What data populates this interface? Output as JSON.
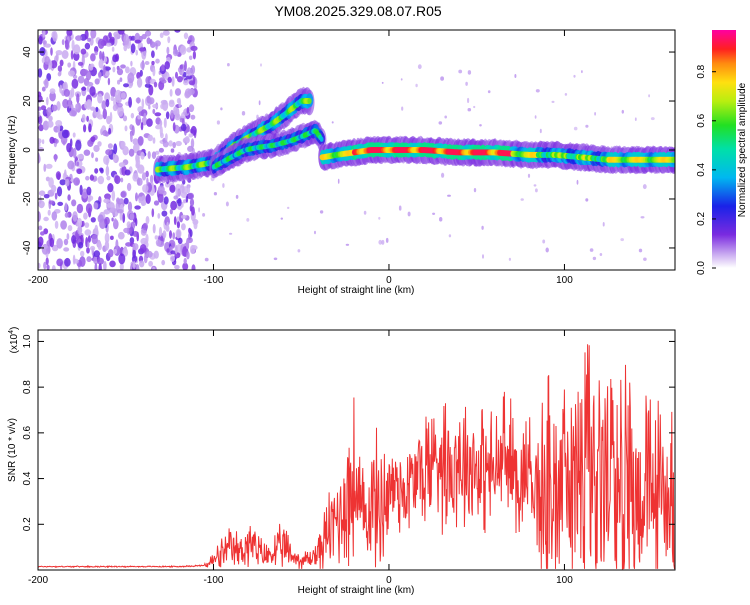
{
  "title": "YM08.2025.329.08.07.R05",
  "chart_data": [
    {
      "type": "heatmap",
      "title": "YM08.2025.329.08.07.R05",
      "xlabel": "Height of straight line (km)",
      "ylabel": "Frequency (Hz)",
      "xlim": [
        -200,
        163
      ],
      "ylim": [
        -49,
        49
      ],
      "xticks": [
        -200,
        -100,
        0,
        100
      ],
      "yticks": [
        -40,
        -20,
        0,
        20,
        40
      ],
      "colorbar": {
        "label": "Normalized spectral amplitude",
        "range": [
          0.0,
          0.97
        ],
        "ticks": [
          0.0,
          0.2,
          0.4,
          0.6,
          0.8
        ],
        "colormap": "rainbow (violet-blue-cyan-green-yellow-red-magenta)"
      },
      "features": [
        {
          "name": "scattered noise",
          "x_range": [
            -200,
            -110
          ],
          "freq_range": [
            -49,
            49
          ]
        },
        {
          "name": "rising branch A",
          "points": [
            [
              -132,
              -8
            ],
            [
              -115,
              -7
            ],
            [
              -100,
              -5
            ],
            [
              -88,
              2
            ],
            [
              -78,
              6
            ],
            [
              -68,
              10
            ],
            [
              -62,
              13
            ],
            [
              -55,
              17
            ],
            [
              -50,
              20
            ],
            [
              -45,
              20
            ]
          ]
        },
        {
          "name": "rising branch B",
          "points": [
            [
              -100,
              -7
            ],
            [
              -90,
              -3
            ],
            [
              -82,
              0
            ],
            [
              -75,
              1
            ],
            [
              -65,
              2
            ],
            [
              -55,
              4
            ],
            [
              -48,
              6
            ],
            [
              -42,
              8
            ],
            [
              -38,
              4
            ]
          ]
        },
        {
          "name": "main ridge",
          "points": [
            [
              -38,
              -3
            ],
            [
              -30,
              -2
            ],
            [
              -20,
              -1
            ],
            [
              -10,
              0
            ],
            [
              0,
              0
            ],
            [
              20,
              0
            ],
            [
              40,
              -1
            ],
            [
              60,
              -1
            ],
            [
              80,
              -2
            ],
            [
              95,
              -2
            ],
            [
              110,
              -3
            ],
            [
              125,
              -4
            ],
            [
              140,
              -4
            ],
            [
              160,
              -4
            ]
          ]
        }
      ]
    },
    {
      "type": "line",
      "xlabel": "Height of straight line (km)",
      "ylabel": "SNR (10 * v/v)",
      "y_multiplier": "(x10",
      "y_multiplier_exp": "4",
      "xlim": [
        -200,
        163
      ],
      "ylim": [
        0,
        1.05
      ],
      "xticks": [
        -200,
        -100,
        0,
        100
      ],
      "yticks": [
        0.2,
        0.4,
        0.6,
        0.8,
        1.0
      ],
      "color": "#ee3333",
      "series": [
        {
          "name": "SNR",
          "x": [
            -200,
            -180,
            -160,
            -140,
            -120,
            -105,
            -100,
            -95,
            -90,
            -85,
            -80,
            -75,
            -70,
            -65,
            -60,
            -55,
            -50,
            -45,
            -40,
            -35,
            -30,
            -25,
            -20,
            -15,
            -10,
            -5,
            0,
            5,
            10,
            15,
            20,
            25,
            30,
            35,
            40,
            45,
            50,
            55,
            60,
            65,
            70,
            75,
            80,
            85,
            90,
            95,
            100,
            105,
            110,
            115,
            120,
            125,
            130,
            135,
            140,
            145,
            150,
            155,
            160,
            163
          ],
          "y": [
            0.015,
            0.015,
            0.015,
            0.015,
            0.015,
            0.02,
            0.04,
            0.07,
            0.09,
            0.08,
            0.12,
            0.08,
            0.06,
            0.08,
            0.1,
            0.06,
            0.04,
            0.05,
            0.08,
            0.16,
            0.22,
            0.3,
            0.38,
            0.22,
            0.3,
            0.28,
            0.35,
            0.38,
            0.34,
            0.4,
            0.44,
            0.48,
            0.52,
            0.45,
            0.5,
            0.47,
            0.46,
            0.44,
            0.42,
            0.5,
            0.45,
            0.4,
            0.46,
            0.38,
            0.44,
            0.3,
            0.48,
            0.4,
            0.5,
            0.46,
            0.42,
            0.38,
            0.36,
            0.4,
            0.35,
            0.34,
            0.36,
            0.34,
            0.32,
            0.33
          ]
        }
      ]
    }
  ]
}
